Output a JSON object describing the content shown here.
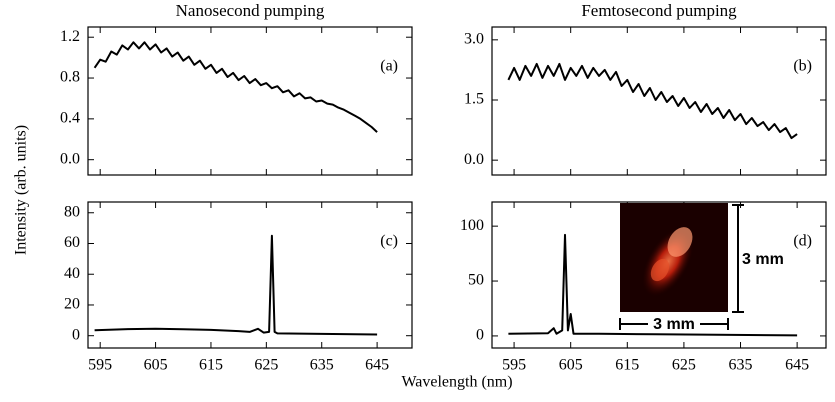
{
  "ylabel": "Intensity (arb. units)",
  "xlabel": "Wavelength (nm)",
  "chart_data": [
    {
      "type": "line",
      "title": "Nanosecond pumping",
      "annotation": "(a)",
      "color": "#000000",
      "show_xtick_labels": false,
      "xlim": [
        592.8,
        651.3
      ],
      "xticks": [
        595,
        605,
        615,
        625,
        635,
        645
      ],
      "ylim": [
        -0.15,
        1.3
      ],
      "yticks": [
        {
          "value": 0,
          "label": "0.0"
        },
        0.4,
        0.8,
        1.2
      ],
      "x": [
        594,
        595,
        596,
        597,
        598,
        599,
        600,
        601,
        602,
        603,
        604,
        605,
        606,
        607,
        608,
        609,
        610,
        611,
        612,
        613,
        614,
        615,
        616,
        617,
        618,
        619,
        620,
        621,
        622,
        623,
        624,
        625,
        626,
        627,
        628,
        629,
        630,
        631,
        632,
        633,
        634,
        635,
        636,
        637,
        638,
        639,
        640,
        641,
        642,
        643,
        644,
        645
      ],
      "values": [
        0.9,
        0.98,
        0.96,
        1.06,
        1.03,
        1.12,
        1.08,
        1.15,
        1.09,
        1.15,
        1.08,
        1.13,
        1.05,
        1.09,
        1.01,
        1.05,
        0.97,
        1.01,
        0.93,
        0.97,
        0.89,
        0.93,
        0.85,
        0.89,
        0.81,
        0.85,
        0.78,
        0.82,
        0.75,
        0.79,
        0.73,
        0.75,
        0.7,
        0.72,
        0.66,
        0.68,
        0.62,
        0.65,
        0.6,
        0.61,
        0.57,
        0.58,
        0.55,
        0.54,
        0.51,
        0.49,
        0.46,
        0.43,
        0.4,
        0.36,
        0.32,
        0.27
      ]
    },
    {
      "type": "line",
      "title": "Femtosecond pumping",
      "annotation": "(b)",
      "color": "#000000",
      "show_xtick_labels": false,
      "xlim": [
        591.1,
        650.1
      ],
      "xticks": [
        595,
        605,
        615,
        625,
        635,
        645
      ],
      "ylim": [
        -0.37,
        3.32
      ],
      "yticks": [
        {
          "value": 0,
          "label": "0.0"
        },
        1.5,
        {
          "value": 3,
          "label": "3.0"
        }
      ],
      "x": [
        594,
        595,
        596,
        597,
        598,
        599,
        600,
        601,
        602,
        603,
        604,
        605,
        606,
        607,
        608,
        609,
        610,
        611,
        612,
        613,
        614,
        615,
        616,
        617,
        618,
        619,
        620,
        621,
        622,
        623,
        624,
        625,
        626,
        627,
        628,
        629,
        630,
        631,
        632,
        633,
        634,
        635,
        636,
        637,
        638,
        639,
        640,
        641,
        642,
        643,
        644,
        645
      ],
      "values": [
        2.0,
        2.3,
        2.0,
        2.35,
        2.1,
        2.4,
        2.05,
        2.35,
        2.1,
        2.4,
        2.0,
        2.3,
        2.1,
        2.35,
        2.05,
        2.3,
        2.1,
        2.25,
        2.0,
        2.2,
        1.85,
        2.0,
        1.7,
        1.9,
        1.6,
        1.8,
        1.5,
        1.7,
        1.45,
        1.6,
        1.35,
        1.55,
        1.3,
        1.45,
        1.2,
        1.4,
        1.15,
        1.3,
        1.05,
        1.25,
        1.0,
        1.15,
        0.9,
        1.05,
        0.85,
        0.95,
        0.75,
        0.9,
        0.7,
        0.8,
        0.55,
        0.65
      ]
    },
    {
      "type": "line",
      "annotation": "(c)",
      "color": "#000000",
      "show_xtick_labels": true,
      "xlim": [
        592.8,
        651.3
      ],
      "xticks": [
        595,
        605,
        615,
        625,
        635,
        645
      ],
      "ylim": [
        -8,
        87
      ],
      "yticks": [
        0,
        20,
        40,
        60,
        80
      ],
      "x": [
        594,
        600,
        605,
        610,
        615,
        620,
        622,
        623.5,
        624.5,
        625.5,
        626,
        626.5,
        627,
        635,
        645
      ],
      "values": [
        3.5,
        4.3,
        4.5,
        4.2,
        3.8,
        3.0,
        2.5,
        4.5,
        2.0,
        2.5,
        65,
        2.5,
        1.5,
        1.2,
        0.8
      ]
    },
    {
      "type": "line",
      "annotation": "(d)",
      "color": "#000000",
      "show_xtick_labels": true,
      "inset_labels": [
        "3 mm",
        "3 mm"
      ],
      "xlim": [
        591.1,
        650.1
      ],
      "xticks": [
        595,
        605,
        615,
        625,
        635,
        645
      ],
      "ylim": [
        -11,
        122
      ],
      "yticks": [
        0,
        50,
        100
      ],
      "x": [
        594,
        601,
        602,
        602.5,
        603.5,
        604,
        604.5,
        605,
        605.5,
        610,
        620,
        645
      ],
      "values": [
        2,
        2.5,
        7,
        2,
        5,
        92,
        5,
        20,
        2,
        2,
        1.5,
        0.5
      ]
    }
  ]
}
